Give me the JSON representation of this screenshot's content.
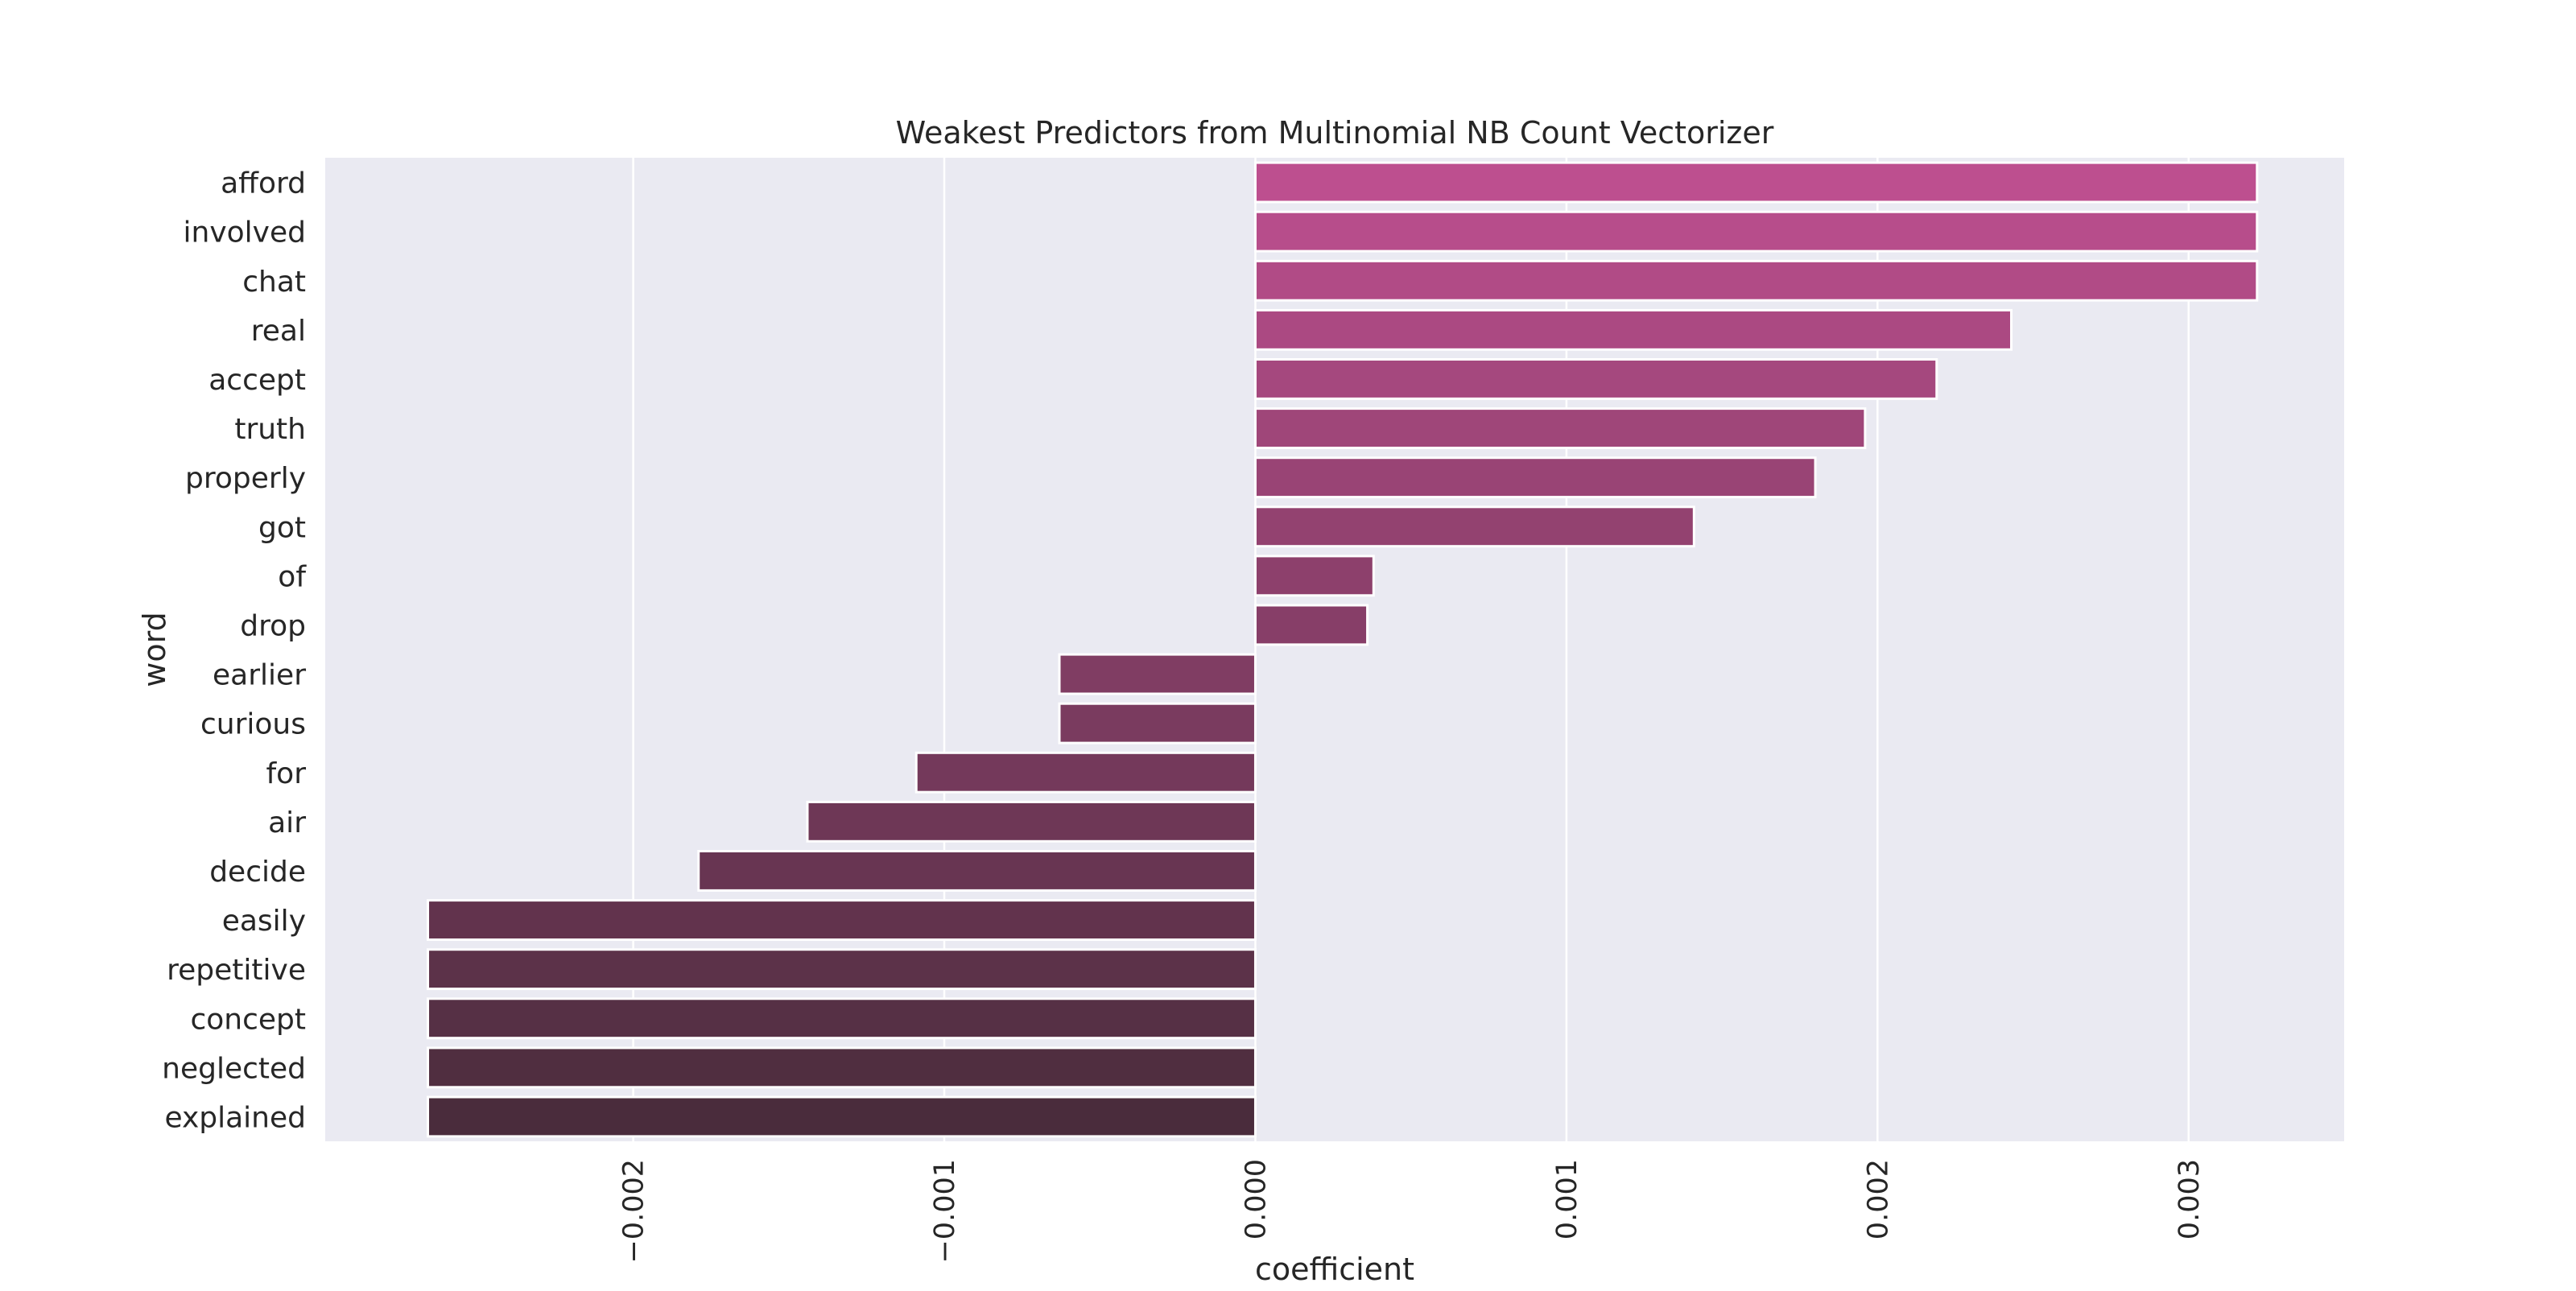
{
  "chart_data": {
    "type": "bar",
    "orientation": "horizontal",
    "title": "Weakest Predictors from Multinomial NB Count Vectorizer",
    "xlabel": "coefficient",
    "ylabel": "word",
    "xlim": [
      -0.00299,
      0.0035
    ],
    "x_ticks": [
      -0.002,
      -0.001,
      0.0,
      0.001,
      0.002,
      0.003
    ],
    "x_tick_labels": [
      "−0.002",
      "−0.001",
      "0.000",
      "0.001",
      "0.002",
      "0.003"
    ],
    "grid": true,
    "categories": [
      "afford",
      "involved",
      "chat",
      "real",
      "accept",
      "truth",
      "properly",
      "got",
      "of",
      "drop",
      "earlier",
      "curious",
      "for",
      "air",
      "decide",
      "easily",
      "repetitive",
      "concept",
      "neglected",
      "explained"
    ],
    "values": [
      0.00322,
      0.00322,
      0.00322,
      0.00243,
      0.00219,
      0.00196,
      0.0018,
      0.00141,
      0.00038,
      0.00036,
      -0.00063,
      -0.00063,
      -0.00109,
      -0.00144,
      -0.00179,
      -0.00266,
      -0.00266,
      -0.00266,
      -0.00266,
      -0.00266
    ],
    "colors": {
      "palette_start": "#bd4f8f",
      "palette_end": "#4a2c3c",
      "plot_background": "#eaeaf2",
      "grid": "#ffffff",
      "bar_edge": "#ffffff"
    }
  }
}
